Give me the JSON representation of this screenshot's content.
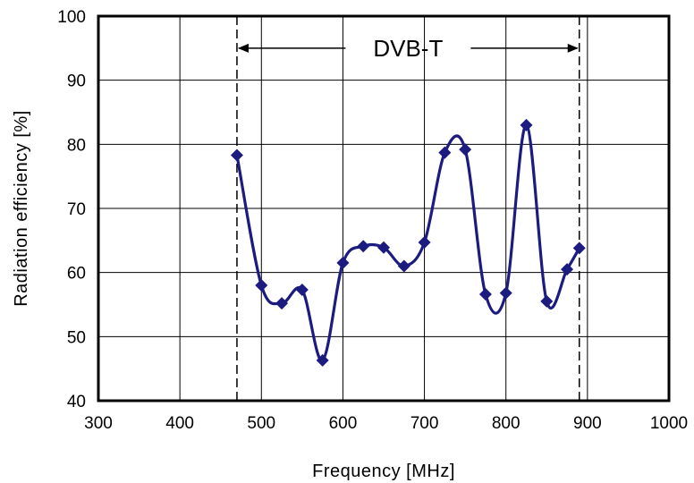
{
  "chart_data": {
    "type": "line",
    "xlabel": "Frequency [MHz]",
    "ylabel": "Radiation efficiency [%]",
    "xlim": [
      300,
      1000
    ],
    "ylim": [
      40,
      100
    ],
    "x_ticks": [
      300,
      400,
      500,
      600,
      700,
      800,
      900,
      1000
    ],
    "y_ticks": [
      40,
      50,
      60,
      70,
      80,
      90,
      100
    ],
    "grid": true,
    "smooth": true,
    "series": [
      {
        "color": "#1c1c80",
        "marker": "diamond",
        "x": [
          470,
          500,
          525,
          550,
          575,
          600,
          625,
          650,
          675,
          700,
          725,
          750,
          775,
          800,
          825,
          850,
          875,
          890
        ],
        "y": [
          78.3,
          58.0,
          55.2,
          57.3,
          46.3,
          61.5,
          64.1,
          63.9,
          61.0,
          64.7,
          78.7,
          79.2,
          56.6,
          56.8,
          83.0,
          55.5,
          60.5,
          63.8
        ]
      }
    ],
    "annotations": [
      {
        "text": "DVB-T",
        "x_start": 470,
        "x_end": 890,
        "y": 95,
        "type": "double-arrow-band"
      }
    ],
    "band_limits": [
      470,
      890
    ]
  }
}
